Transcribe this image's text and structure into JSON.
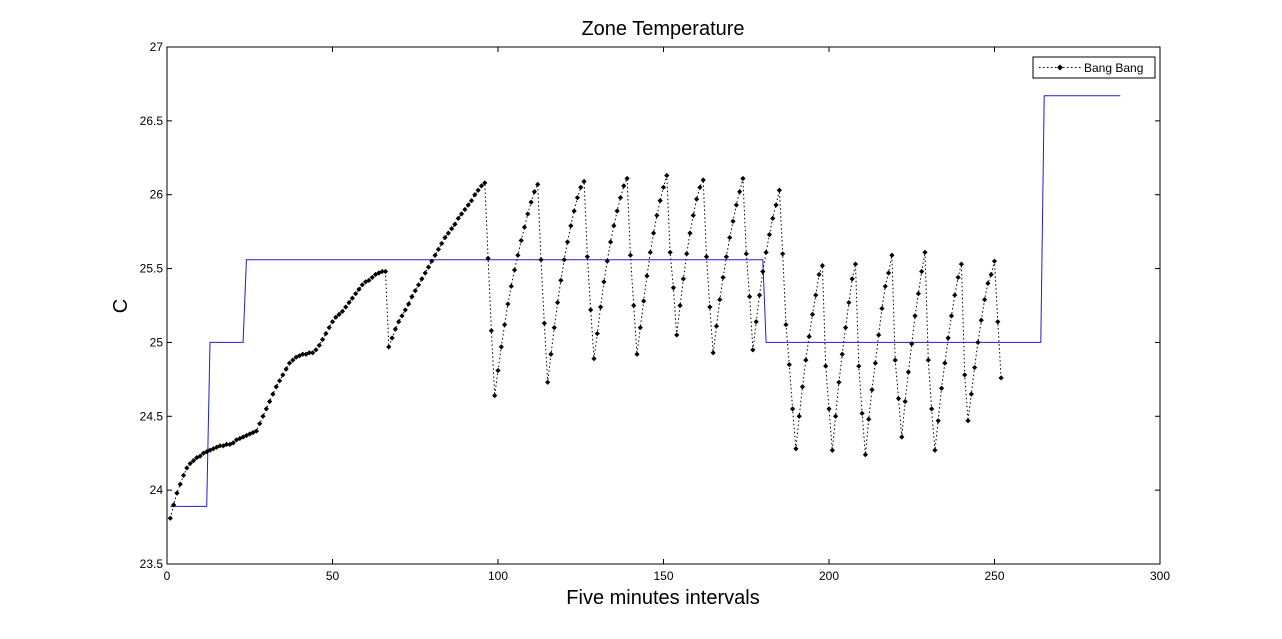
{
  "chart_data": {
    "type": "line",
    "title": "Zone Temperature",
    "xlabel": "Five minutes intervals",
    "ylabel": "C",
    "xlim": [
      0,
      300
    ],
    "ylim": [
      23.5,
      27
    ],
    "xticks": [
      0,
      50,
      100,
      150,
      200,
      250,
      300
    ],
    "xtick_labels": [
      "0",
      "50",
      "100",
      "150",
      "200",
      "250",
      "300"
    ],
    "yticks": [
      23.5,
      24,
      24.5,
      25,
      25.5,
      26,
      26.5,
      27
    ],
    "ytick_labels": [
      "23.5",
      "24",
      "24.5",
      "25",
      "25.5",
      "26",
      "26.5",
      "27"
    ],
    "grid": false,
    "legend_position": "top-right",
    "series": [
      {
        "kind": "step",
        "color": "#1e1ed2",
        "line_style": "solid",
        "x": [
          1,
          12,
          13,
          23,
          24,
          180,
          181,
          264,
          265,
          288
        ],
        "y": [
          23.89,
          23.89,
          25.0,
          25.0,
          25.56,
          25.56,
          25.0,
          25.0,
          26.67,
          26.67
        ]
      },
      {
        "name": "Bang Bang",
        "kind": "marker-line",
        "color": "#000000",
        "line_style": "dotted",
        "marker": "diamond",
        "x": [
          1,
          2,
          3,
          4,
          5,
          6,
          7,
          8,
          9,
          10,
          11,
          12,
          13,
          14,
          15,
          16,
          17,
          18,
          19,
          20,
          21,
          22,
          23,
          24,
          25,
          26,
          27,
          28,
          29,
          30,
          31,
          32,
          33,
          34,
          35,
          36,
          37,
          38,
          39,
          40,
          41,
          42,
          43,
          44,
          45,
          46,
          47,
          48,
          49,
          50,
          51,
          52,
          53,
          54,
          55,
          56,
          57,
          58,
          59,
          60,
          61,
          62,
          63,
          64,
          65,
          66,
          67,
          68,
          69,
          70,
          71,
          72,
          73,
          74,
          75,
          76,
          77,
          78,
          79,
          80,
          81,
          82,
          83,
          84,
          85,
          86,
          87,
          88,
          89,
          90,
          91,
          92,
          93,
          94,
          95,
          96,
          97,
          98,
          99,
          100,
          101,
          102,
          103,
          104,
          105,
          106,
          107,
          108,
          109,
          110,
          111,
          112,
          113,
          114,
          115,
          116,
          117,
          118,
          119,
          120,
          121,
          122,
          123,
          124,
          125,
          126,
          127,
          128,
          129,
          130,
          131,
          132,
          133,
          134,
          135,
          136,
          137,
          138,
          139,
          140,
          141,
          142,
          143,
          144,
          145,
          146,
          147,
          148,
          149,
          150,
          151,
          152,
          153,
          154,
          155,
          156,
          157,
          158,
          159,
          160,
          161,
          162,
          163,
          164,
          165,
          166,
          167,
          168,
          169,
          170,
          171,
          172,
          173,
          174,
          175,
          176,
          177,
          178,
          179,
          180,
          181,
          182,
          183,
          184,
          185,
          186,
          187,
          188,
          189,
          190,
          191,
          192,
          193,
          194,
          195,
          196,
          197,
          198,
          199,
          200,
          201,
          202,
          203,
          204,
          205,
          206,
          207,
          208,
          209,
          210,
          211,
          212,
          213,
          214,
          215,
          216,
          217,
          218,
          219,
          220,
          221,
          222,
          223,
          224,
          225,
          226,
          227,
          228,
          229,
          230,
          231,
          232,
          233,
          234,
          235,
          236,
          237,
          238,
          239,
          240,
          241,
          242,
          243,
          244,
          245,
          246,
          247,
          248,
          249,
          250,
          251,
          252
        ],
        "y": [
          23.81,
          23.9,
          23.98,
          24.04,
          24.1,
          24.15,
          24.18,
          24.2,
          24.22,
          24.23,
          24.25,
          24.26,
          24.27,
          24.28,
          24.29,
          24.3,
          24.3,
          24.31,
          24.31,
          24.32,
          24.34,
          24.35,
          24.36,
          24.37,
          24.38,
          24.39,
          24.4,
          24.45,
          24.5,
          24.55,
          24.6,
          24.65,
          24.7,
          24.74,
          24.78,
          24.82,
          24.86,
          24.88,
          24.9,
          24.91,
          24.92,
          24.92,
          24.93,
          24.93,
          24.95,
          24.98,
          25.02,
          25.06,
          25.1,
          25.14,
          25.17,
          25.19,
          25.21,
          25.24,
          25.27,
          25.3,
          25.33,
          25.36,
          25.39,
          25.41,
          25.42,
          25.44,
          25.46,
          25.47,
          25.48,
          25.48,
          24.97,
          25.03,
          25.09,
          25.14,
          25.18,
          25.22,
          25.26,
          25.31,
          25.35,
          25.39,
          25.43,
          25.47,
          25.51,
          25.55,
          25.59,
          25.63,
          25.67,
          25.71,
          25.74,
          25.77,
          25.8,
          25.84,
          25.87,
          25.9,
          25.93,
          25.96,
          26.0,
          26.03,
          26.06,
          26.08,
          25.57,
          25.08,
          24.64,
          24.81,
          24.97,
          25.12,
          25.26,
          25.38,
          25.49,
          25.59,
          25.69,
          25.78,
          25.87,
          25.95,
          26.02,
          26.07,
          25.56,
          25.13,
          24.73,
          24.92,
          25.1,
          25.27,
          25.42,
          25.56,
          25.68,
          25.79,
          25.89,
          25.98,
          26.05,
          26.09,
          25.58,
          25.22,
          24.89,
          25.06,
          25.24,
          25.41,
          25.55,
          25.68,
          25.79,
          25.89,
          25.98,
          26.06,
          26.11,
          25.59,
          25.25,
          24.92,
          25.1,
          25.28,
          25.45,
          25.61,
          25.74,
          25.86,
          25.96,
          26.05,
          26.13,
          25.61,
          25.37,
          25.05,
          25.25,
          25.43,
          25.6,
          25.74,
          25.86,
          25.97,
          26.05,
          26.1,
          25.58,
          25.24,
          24.93,
          25.11,
          25.29,
          25.44,
          25.58,
          25.71,
          25.82,
          25.93,
          26.02,
          26.11,
          25.6,
          25.31,
          24.95,
          25.14,
          25.32,
          25.48,
          25.61,
          25.73,
          25.84,
          25.93,
          26.03,
          25.6,
          25.12,
          24.85,
          24.55,
          24.28,
          24.5,
          24.7,
          24.88,
          25.04,
          25.19,
          25.32,
          25.46,
          25.52,
          24.84,
          24.55,
          24.27,
          24.5,
          24.73,
          24.92,
          25.1,
          25.27,
          25.43,
          25.53,
          24.84,
          24.52,
          24.24,
          24.48,
          24.68,
          24.86,
          25.05,
          25.23,
          25.38,
          25.47,
          25.59,
          24.88,
          24.62,
          24.36,
          24.6,
          24.8,
          24.99,
          25.18,
          25.33,
          25.48,
          25.61,
          24.88,
          24.55,
          24.27,
          24.47,
          24.69,
          24.86,
          25.03,
          25.18,
          25.32,
          25.44,
          25.53,
          24.78,
          24.47,
          24.65,
          24.83,
          25.0,
          25.15,
          25.29,
          25.4,
          25.46,
          25.55,
          25.14,
          24.76
        ]
      }
    ]
  }
}
